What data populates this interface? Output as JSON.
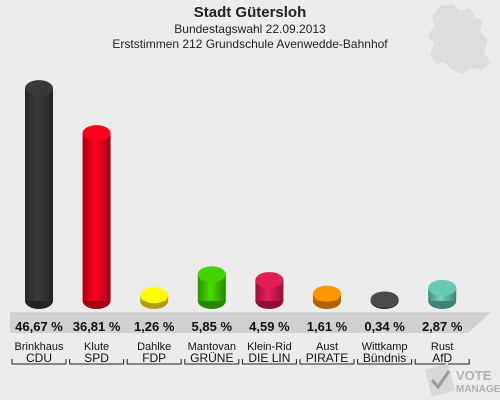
{
  "header": {
    "title": "Stadt Gütersloh",
    "subtitle": "Bundestagswahl 22.09.2013",
    "subtitle2": "Erststimmen 212 Grundschule Avenwedde-Bahnhof"
  },
  "watermark": {
    "text1": "VOTE",
    "text2": "MANAGER"
  },
  "chart_data": {
    "type": "bar",
    "title": "Stadt Gütersloh",
    "categories": [
      "CDU",
      "SPD",
      "FDP",
      "GRÜNE",
      "DIE LIN",
      "PIRATE",
      "Bündnis",
      "AfD"
    ],
    "candidates": [
      "Brinkhaus",
      "Klute",
      "Dahlke",
      "Mantovan",
      "Klein-Rid",
      "Aust",
      "Wittkamp",
      "Rust"
    ],
    "values": [
      46.67,
      36.81,
      1.26,
      5.85,
      4.59,
      1.61,
      0.34,
      2.87
    ],
    "value_labels": [
      "46,67 %",
      "36,81 %",
      "1,26 %",
      "5,85 %",
      "4,59 %",
      "1,61 %",
      "0,34 %",
      "2,87 %"
    ],
    "colors": [
      "#333333",
      "#e3001b",
      "#f5e30a",
      "#3cbf00",
      "#cc1a4d",
      "#ff8800",
      "#444444",
      "#5fb8a3"
    ],
    "ylim": [
      0,
      50
    ]
  }
}
